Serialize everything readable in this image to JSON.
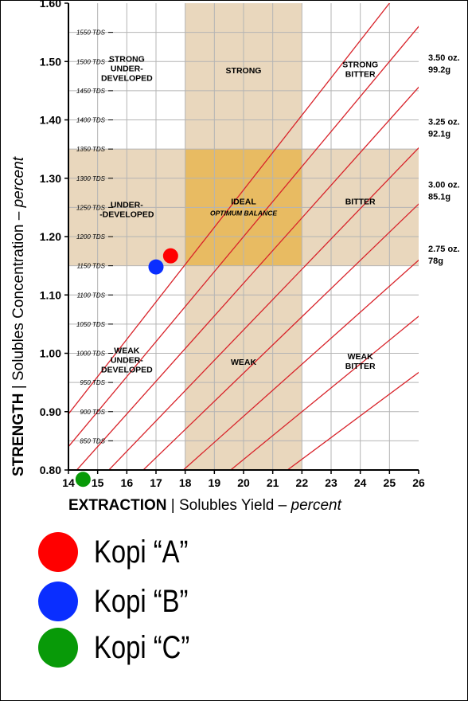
{
  "chart_data": {
    "type": "scatter",
    "title": "",
    "xlabel_bold": "EXTRACTION",
    "xlabel_rest": "Solubles Yield",
    "xlabel_unit": "percent",
    "ylabel_bold": "STRENGTH",
    "ylabel_rest": "Solubles Concentration",
    "ylabel_unit": "percent",
    "xlim": [
      14,
      26
    ],
    "ylim": [
      0.8,
      1.6
    ],
    "x_ticks": [
      "14",
      "15",
      "16",
      "17",
      "18",
      "19",
      "20",
      "21",
      "22",
      "23",
      "24",
      "25",
      "26"
    ],
    "y_ticks": [
      "0.80",
      "0.90",
      "1.00",
      "1.10",
      "1.20",
      "1.30",
      "1.40",
      "1.50",
      "1.60"
    ],
    "tds_ticks": [
      {
        "y": 0.85,
        "label": "850 TDS"
      },
      {
        "y": 0.9,
        "label": "900 TDS"
      },
      {
        "y": 0.95,
        "label": "950 TDS"
      },
      {
        "y": 1.0,
        "label": "1000 TDS"
      },
      {
        "y": 1.05,
        "label": "1050 TDS"
      },
      {
        "y": 1.1,
        "label": "1100 TDS"
      },
      {
        "y": 1.15,
        "label": "1150 TDS"
      },
      {
        "y": 1.2,
        "label": "1200 TDS"
      },
      {
        "y": 1.25,
        "label": "1250 TDS"
      },
      {
        "y": 1.3,
        "label": "1300 TDS"
      },
      {
        "y": 1.35,
        "label": "1350 TDS"
      },
      {
        "y": 1.4,
        "label": "1400 TDS"
      },
      {
        "y": 1.45,
        "label": "1450 TDS"
      },
      {
        "y": 1.5,
        "label": "1500 TDS"
      },
      {
        "y": 1.55,
        "label": "1550 TDS"
      }
    ],
    "bands": [
      {
        "x0": 18,
        "x1": 22,
        "y0": 0.8,
        "y1": 1.6,
        "color": "#e9d7bd"
      },
      {
        "x0": 14,
        "x1": 26,
        "y0": 1.15,
        "y1": 1.35,
        "color": "#e9d7bd"
      },
      {
        "x0": 18,
        "x1": 22,
        "y0": 1.15,
        "y1": 1.35,
        "color": "#e8bb62"
      }
    ],
    "ratio_lines": [
      {
        "slope": 0.052,
        "label_line1": "3.50 oz.",
        "label_line2": "99.2g",
        "label_y": 1.502
      },
      {
        "slope": 0.0483,
        "label_line1": "3.25 oz.",
        "label_line2": "92.1g",
        "label_y": 1.392
      },
      {
        "slope": 0.0446,
        "label_line1": "3.00 oz.",
        "label_line2": "85.1g",
        "label_y": 1.284
      },
      {
        "slope": 0.0409,
        "label_line1": "2.75 oz.",
        "label_line2": "78g",
        "label_y": 1.174
      },
      {
        "slope": 0.064,
        "label_line1": "",
        "label_line2": ""
      },
      {
        "slope": 0.06,
        "label_line1": "",
        "label_line2": ""
      },
      {
        "slope": 0.056,
        "label_line1": "",
        "label_line2": ""
      },
      {
        "slope": 0.0372,
        "label_line1": "",
        "label_line2": ""
      }
    ],
    "zones": [
      {
        "line1": "STRONG",
        "line2": "UNDER-",
        "line3": "DEVELOPED",
        "sub": "",
        "x": 16.0,
        "y": 1.5
      },
      {
        "line1": "STRONG",
        "line2": "",
        "line3": "",
        "sub": "",
        "x": 20.0,
        "y": 1.48
      },
      {
        "line1": "STRONG",
        "line2": "BITTER",
        "line3": "",
        "sub": "",
        "x": 24.0,
        "y": 1.49
      },
      {
        "line1": "UNDER-",
        "line2": "-DEVELOPED",
        "line3": "",
        "sub": "",
        "x": 16.0,
        "y": 1.25
      },
      {
        "line1": "IDEAL",
        "line2": "",
        "line3": "",
        "sub": "OPTIMUM BALANCE",
        "x": 20.0,
        "y": 1.255
      },
      {
        "line1": "BITTER",
        "line2": "",
        "line3": "",
        "sub": "",
        "x": 24.0,
        "y": 1.255
      },
      {
        "line1": "WEAK",
        "line2": "UNDER-",
        "line3": "DEVELOPED",
        "sub": "",
        "x": 16.0,
        "y": 1.0
      },
      {
        "line1": "WEAK",
        "line2": "",
        "line3": "",
        "sub": "",
        "x": 20.0,
        "y": 0.98
      },
      {
        "line1": "WEAK",
        "line2": "BITTER",
        "line3": "",
        "sub": "",
        "x": 24.0,
        "y": 0.99
      }
    ],
    "series": [
      {
        "name": "Kopi “A”",
        "color": "#ff0000",
        "x": [
          17.5
        ],
        "y": [
          1.167
        ]
      },
      {
        "name": "Kopi “B”",
        "color": "#0a2eff",
        "x": [
          17.0
        ],
        "y": [
          1.148
        ]
      },
      {
        "name": "Kopi “C”",
        "color": "#089a08",
        "x": [
          14.5
        ],
        "y": [
          0.784
        ]
      }
    ],
    "colors": {
      "grid": "#b4b4b4",
      "ratio_line": "#d8232a",
      "axis": "#000000",
      "text": "#000000"
    }
  },
  "legend": {
    "items": [
      {
        "label": "Kopi “A”",
        "color": "#ff0000"
      },
      {
        "label": "Kopi “B”",
        "color": "#0a2eff"
      },
      {
        "label": "Kopi “C”",
        "color": "#089a08"
      }
    ]
  }
}
